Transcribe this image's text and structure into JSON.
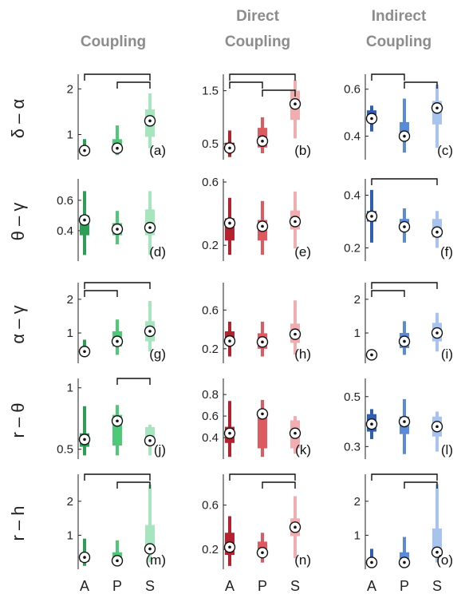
{
  "chart_data": {
    "type": "box",
    "column_titles": [
      [
        "Coupling"
      ],
      [
        "Direct",
        "Coupling"
      ],
      [
        "Indirect",
        "Coupling"
      ]
    ],
    "row_labels": [
      "δ – α",
      "θ – γ",
      "α – γ",
      "r – θ",
      "r – h"
    ],
    "categories": [
      "A",
      "P",
      "S"
    ],
    "colors": {
      "col0": [
        "#2e9e57",
        "#4fc878",
        "#a6e5bd"
      ],
      "col1": [
        "#b3222e",
        "#dc5a60",
        "#f0aeb1"
      ],
      "col2": [
        "#2f5fb0",
        "#5a8ad8",
        "#a8c4ee"
      ]
    },
    "panels": [
      {
        "label": "(a)",
        "row": 0,
        "col": 0,
        "ylim": [
          0.45,
          2.25
        ],
        "yticks": [
          1,
          2
        ],
        "boxes": [
          {
            "cat": "A",
            "whisker_low": 0.55,
            "q1": 0.6,
            "median": 0.65,
            "q3": 0.72,
            "whisker_high": 0.9
          },
          {
            "cat": "P",
            "whisker_low": 0.55,
            "q1": 0.62,
            "median": 0.7,
            "q3": 0.9,
            "whisker_high": 1.2
          },
          {
            "cat": "S",
            "whisker_low": 0.7,
            "q1": 0.95,
            "median": 1.3,
            "q3": 1.55,
            "whisker_high": 1.9
          }
        ],
        "brackets": [
          [
            0,
            2,
            0
          ],
          [
            1,
            2,
            1
          ]
        ]
      },
      {
        "label": "(b)",
        "row": 0,
        "col": 1,
        "ylim": [
          0.2,
          1.75
        ],
        "yticks": [
          0.5,
          1.5
        ],
        "ytick_labels": [
          "0.5",
          "1.5"
        ],
        "boxes": [
          {
            "cat": "A",
            "whisker_low": 0.25,
            "q1": 0.35,
            "median": 0.42,
            "q3": 0.52,
            "whisker_high": 0.75
          },
          {
            "cat": "P",
            "whisker_low": 0.32,
            "q1": 0.43,
            "median": 0.55,
            "q3": 0.8,
            "whisker_high": 1.0
          },
          {
            "cat": "S",
            "whisker_low": 0.6,
            "q1": 0.95,
            "median": 1.25,
            "q3": 1.5,
            "whisker_high": 1.7
          }
        ],
        "brackets": [
          [
            0,
            2,
            0
          ],
          [
            0,
            1,
            1
          ],
          [
            1,
            2,
            2
          ]
        ]
      },
      {
        "label": "(c)",
        "row": 0,
        "col": 2,
        "ylim": [
          0.3,
          0.65
        ],
        "yticks": [
          0.4,
          0.6
        ],
        "ytick_labels": [
          "0.4",
          "0.6"
        ],
        "boxes": [
          {
            "cat": "A",
            "whisker_low": 0.42,
            "q1": 0.46,
            "median": 0.475,
            "q3": 0.51,
            "whisker_high": 0.53
          },
          {
            "cat": "P",
            "whisker_low": 0.33,
            "q1": 0.39,
            "median": 0.4,
            "q3": 0.46,
            "whisker_high": 0.56
          },
          {
            "cat": "S",
            "whisker_low": 0.35,
            "q1": 0.45,
            "median": 0.52,
            "q3": 0.55,
            "whisker_high": 0.62
          }
        ],
        "brackets": [
          [
            0,
            1,
            0
          ],
          [
            1,
            2,
            1
          ]
        ]
      },
      {
        "label": "(d)",
        "row": 1,
        "col": 0,
        "ylim": [
          0.2,
          0.72
        ],
        "yticks": [
          0.4,
          0.6
        ],
        "ytick_labels": [
          "0.4",
          "0.6"
        ],
        "boxes": [
          {
            "cat": "A",
            "whisker_low": 0.24,
            "q1": 0.37,
            "median": 0.47,
            "q3": 0.5,
            "whisker_high": 0.66
          },
          {
            "cat": "P",
            "whisker_low": 0.31,
            "q1": 0.37,
            "median": 0.41,
            "q3": 0.45,
            "whisker_high": 0.53
          },
          {
            "cat": "S",
            "whisker_low": 0.24,
            "q1": 0.37,
            "median": 0.42,
            "q3": 0.54,
            "whisker_high": 0.66
          }
        ],
        "brackets": []
      },
      {
        "label": "(e)",
        "row": 1,
        "col": 1,
        "ylim": [
          0.1,
          0.6
        ],
        "yticks": [
          0.2,
          0.6
        ],
        "ytick_labels": [
          "0.2",
          "0.6"
        ],
        "boxes": [
          {
            "cat": "A",
            "whisker_low": 0.14,
            "q1": 0.23,
            "median": 0.34,
            "q3": 0.37,
            "whisker_high": 0.5
          },
          {
            "cat": "P",
            "whisker_low": 0.14,
            "q1": 0.23,
            "median": 0.32,
            "q3": 0.36,
            "whisker_high": 0.48
          },
          {
            "cat": "S",
            "whisker_low": 0.18,
            "q1": 0.3,
            "median": 0.35,
            "q3": 0.42,
            "whisker_high": 0.54
          }
        ],
        "brackets": []
      },
      {
        "label": "(f)",
        "row": 1,
        "col": 2,
        "ylim": [
          0.15,
          0.45
        ],
        "yticks": [
          0.2,
          0.4
        ],
        "ytick_labels": [
          "0.2",
          "0.4"
        ],
        "boxes": [
          {
            "cat": "A",
            "whisker_low": 0.22,
            "q1": 0.3,
            "median": 0.32,
            "q3": 0.34,
            "whisker_high": 0.42
          },
          {
            "cat": "P",
            "whisker_low": 0.22,
            "q1": 0.27,
            "median": 0.28,
            "q3": 0.31,
            "whisker_high": 0.35
          },
          {
            "cat": "S",
            "whisker_low": 0.2,
            "q1": 0.24,
            "median": 0.26,
            "q3": 0.31,
            "whisker_high": 0.34
          }
        ],
        "brackets": [
          [
            0,
            2,
            0
          ]
        ]
      },
      {
        "label": "(g)",
        "row": 2,
        "col": 0,
        "ylim": [
          0.1,
          2.4
        ],
        "yticks": [
          1,
          2
        ],
        "boxes": [
          {
            "cat": "A",
            "whisker_low": 0.3,
            "q1": 0.35,
            "median": 0.45,
            "q3": 0.55,
            "whisker_high": 0.8
          },
          {
            "cat": "P",
            "whisker_low": 0.35,
            "q1": 0.6,
            "median": 0.75,
            "q3": 1.05,
            "whisker_high": 1.4
          },
          {
            "cat": "S",
            "whisker_low": 0.45,
            "q1": 0.75,
            "median": 1.05,
            "q3": 1.35,
            "whisker_high": 1.95
          }
        ],
        "brackets": [
          [
            0,
            2,
            0
          ],
          [
            0,
            1,
            1
          ]
        ]
      },
      {
        "label": "(h)",
        "row": 2,
        "col": 1,
        "ylim": [
          0.05,
          0.85
        ],
        "yticks": [
          0.2,
          0.6
        ],
        "ytick_labels": [
          "0.2",
          "0.6"
        ],
        "boxes": [
          {
            "cat": "A",
            "whisker_low": 0.12,
            "q1": 0.25,
            "median": 0.28,
            "q3": 0.38,
            "whisker_high": 0.48
          },
          {
            "cat": "P",
            "whisker_low": 0.12,
            "q1": 0.2,
            "median": 0.27,
            "q3": 0.36,
            "whisker_high": 0.48
          },
          {
            "cat": "S",
            "whisker_low": 0.14,
            "q1": 0.26,
            "median": 0.35,
            "q3": 0.46,
            "whisker_high": 0.7
          }
        ],
        "brackets": []
      },
      {
        "label": "(i)",
        "row": 2,
        "col": 2,
        "ylim": [
          0.1,
          2.4
        ],
        "yticks": [
          1,
          2
        ],
        "boxes": [
          {
            "cat": "A",
            "whisker_low": 0.28,
            "q1": 0.3,
            "median": 0.35,
            "q3": 0.38,
            "whisker_high": 0.45
          },
          {
            "cat": "P",
            "whisker_low": 0.35,
            "q1": 0.55,
            "median": 0.75,
            "q3": 1.0,
            "whisker_high": 1.35
          },
          {
            "cat": "S",
            "whisker_low": 0.45,
            "q1": 0.75,
            "median": 1.0,
            "q3": 1.3,
            "whisker_high": 1.6
          }
        ],
        "brackets": [
          [
            0,
            2,
            0
          ],
          [
            0,
            1,
            1
          ]
        ]
      },
      {
        "label": "(j)",
        "row": 3,
        "col": 0,
        "ylim": [
          0.42,
          1.05
        ],
        "yticks": [
          0.5,
          1
        ],
        "ytick_labels": [
          "0.5",
          "1"
        ],
        "boxes": [
          {
            "cat": "A",
            "whisker_low": 0.45,
            "q1": 0.52,
            "median": 0.58,
            "q3": 0.63,
            "whisker_high": 0.85
          },
          {
            "cat": "P",
            "whisker_low": 0.45,
            "q1": 0.53,
            "median": 0.73,
            "q3": 0.78,
            "whisker_high": 0.86
          },
          {
            "cat": "S",
            "whisker_low": 0.45,
            "q1": 0.53,
            "median": 0.57,
            "q3": 0.68,
            "whisker_high": 0.7
          }
        ],
        "brackets": [
          [
            1,
            2,
            0
          ]
        ]
      },
      {
        "label": "(k)",
        "row": 3,
        "col": 1,
        "ylim": [
          0.2,
          0.92
        ],
        "yticks": [
          0.4,
          0.6,
          0.8
        ],
        "ytick_labels": [
          "0.4",
          "0.6",
          "0.8"
        ],
        "boxes": [
          {
            "cat": "A",
            "whisker_low": 0.22,
            "q1": 0.35,
            "median": 0.44,
            "q3": 0.5,
            "whisker_high": 0.74
          },
          {
            "cat": "P",
            "whisker_low": 0.22,
            "q1": 0.3,
            "median": 0.62,
            "q3": 0.65,
            "whisker_high": 0.75
          },
          {
            "cat": "S",
            "whisker_low": 0.25,
            "q1": 0.3,
            "median": 0.44,
            "q3": 0.56,
            "whisker_high": 0.6
          }
        ],
        "brackets": []
      },
      {
        "label": "(l)",
        "row": 3,
        "col": 2,
        "ylim": [
          0.25,
          0.56
        ],
        "yticks": [
          0.3,
          0.5
        ],
        "ytick_labels": [
          "0.3",
          "0.5"
        ],
        "boxes": [
          {
            "cat": "A",
            "whisker_low": 0.33,
            "q1": 0.36,
            "median": 0.39,
            "q3": 0.43,
            "whisker_high": 0.45
          },
          {
            "cat": "P",
            "whisker_low": 0.27,
            "q1": 0.35,
            "median": 0.4,
            "q3": 0.42,
            "whisker_high": 0.49
          },
          {
            "cat": "S",
            "whisker_low": 0.28,
            "q1": 0.34,
            "median": 0.38,
            "q3": 0.42,
            "whisker_high": 0.44
          }
        ],
        "brackets": []
      },
      {
        "label": "(m)",
        "row": 4,
        "col": 0,
        "ylim": [
          0.0,
          2.7
        ],
        "yticks": [
          1,
          2
        ],
        "boxes": [
          {
            "cat": "A",
            "whisker_low": 0.1,
            "q1": 0.22,
            "median": 0.35,
            "q3": 0.45,
            "whisker_high": 0.9
          },
          {
            "cat": "P",
            "whisker_low": 0.1,
            "q1": 0.2,
            "median": 0.25,
            "q3": 0.5,
            "whisker_high": 0.85
          },
          {
            "cat": "S",
            "whisker_low": 0.2,
            "q1": 0.5,
            "median": 0.6,
            "q3": 1.3,
            "whisker_high": 2.5
          }
        ],
        "brackets": [
          [
            0,
            2,
            0
          ],
          [
            1,
            2,
            1
          ]
        ]
      },
      {
        "label": "(n)",
        "row": 4,
        "col": 1,
        "ylim": [
          0.02,
          0.85
        ],
        "yticks": [
          0.2,
          0.6
        ],
        "ytick_labels": [
          "0.2",
          "0.6"
        ],
        "boxes": [
          {
            "cat": "A",
            "whisker_low": 0.05,
            "q1": 0.15,
            "median": 0.22,
            "q3": 0.35,
            "whisker_high": 0.5
          },
          {
            "cat": "P",
            "whisker_low": 0.08,
            "q1": 0.14,
            "median": 0.17,
            "q3": 0.27,
            "whisker_high": 0.35
          },
          {
            "cat": "S",
            "whisker_low": 0.12,
            "q1": 0.32,
            "median": 0.4,
            "q3": 0.48,
            "whisker_high": 0.68
          }
        ],
        "brackets": [
          [
            0,
            2,
            0
          ],
          [
            1,
            2,
            1
          ]
        ]
      },
      {
        "label": "(o)",
        "row": 4,
        "col": 2,
        "ylim": [
          0.0,
          2.7
        ],
        "yticks": [
          1,
          2
        ],
        "boxes": [
          {
            "cat": "A",
            "whisker_low": 0.1,
            "q1": 0.15,
            "median": 0.2,
            "q3": 0.3,
            "whisker_high": 0.6
          },
          {
            "cat": "P",
            "whisker_low": 0.1,
            "q1": 0.12,
            "median": 0.2,
            "q3": 0.5,
            "whisker_high": 0.95
          },
          {
            "cat": "S",
            "whisker_low": 0.2,
            "q1": 0.4,
            "median": 0.5,
            "q3": 1.2,
            "whisker_high": 2.5
          }
        ],
        "brackets": [
          [
            0,
            2,
            0
          ],
          [
            1,
            2,
            1
          ]
        ]
      }
    ]
  }
}
